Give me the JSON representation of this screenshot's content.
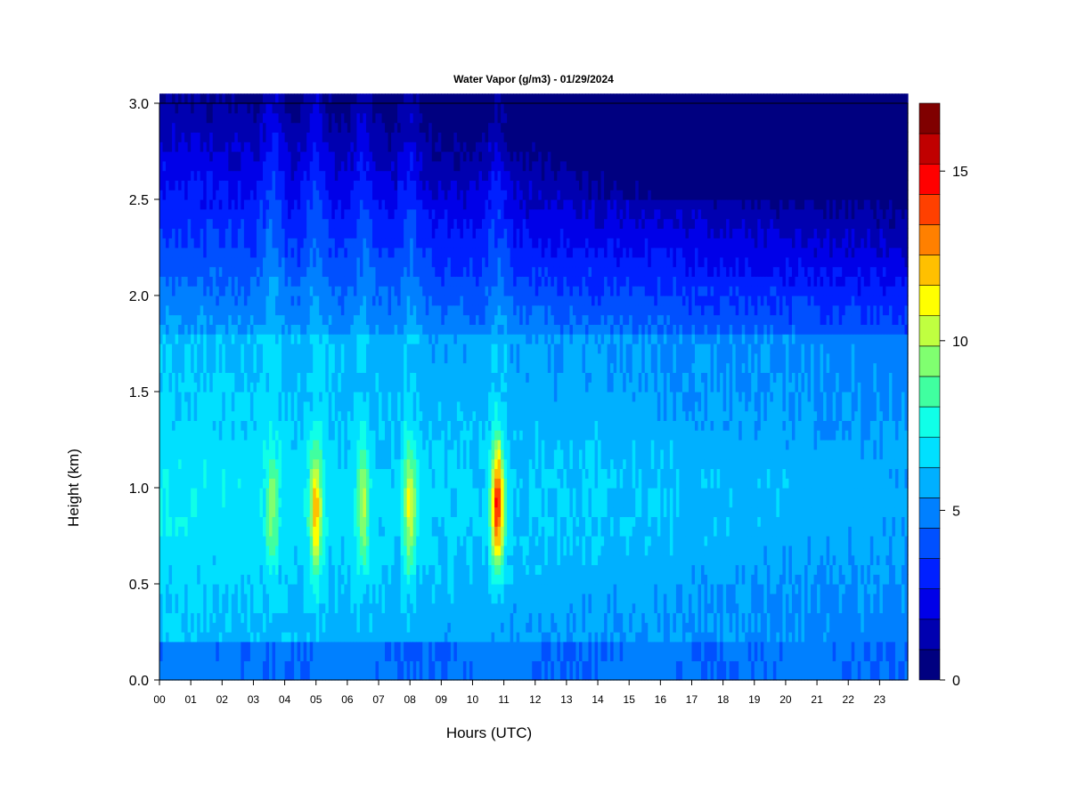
{
  "chart_data": {
    "type": "heatmap",
    "title": "Water Vapor (g/m3) - 01/29/2024",
    "xlabel": "Hours (UTC)",
    "ylabel": "Height (km)",
    "x_ticks": [
      "00",
      "01",
      "02",
      "03",
      "04",
      "05",
      "06",
      "07",
      "08",
      "09",
      "10",
      "11",
      "12",
      "13",
      "14",
      "15",
      "16",
      "17",
      "18",
      "19",
      "20",
      "21",
      "22",
      "23"
    ],
    "xlim": [
      0,
      23.9
    ],
    "y_ticks": [
      "0.0",
      "0.5",
      "1.0",
      "1.5",
      "2.0",
      "2.5",
      "3.0"
    ],
    "ylim": [
      0,
      3.0
    ],
    "colorbar": {
      "min": 0,
      "max": 17,
      "step": 1,
      "ticks": [
        "0",
        "5",
        "10",
        "15"
      ],
      "colors": [
        "#000080",
        "#0000b0",
        "#0000e8",
        "#0020ff",
        "#0050ff",
        "#0080ff",
        "#00b0ff",
        "#00e0ff",
        "#10ffe8",
        "#40ffa0",
        "#80ff70",
        "#c0ff40",
        "#ffff00",
        "#ffc000",
        "#ff8000",
        "#ff4000",
        "#ff0000",
        "#c00000",
        "#800000"
      ]
    },
    "humid_plumes": [
      {
        "hour": 3.6,
        "peak_km": 0.9,
        "max_value": 10
      },
      {
        "hour": 5.0,
        "peak_km": 0.88,
        "max_value": 13
      },
      {
        "hour": 6.5,
        "peak_km": 0.9,
        "max_value": 11
      },
      {
        "hour": 8.0,
        "peak_km": 0.9,
        "max_value": 12
      },
      {
        "hour": 10.8,
        "peak_km": 0.92,
        "max_value": 16.5
      }
    ]
  }
}
